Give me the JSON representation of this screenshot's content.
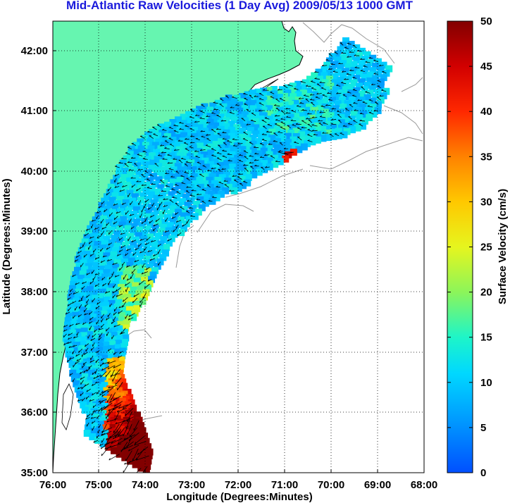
{
  "title": "Mid-Atlantic Raw Velocities (1 Day Avg) 2009/05/13 1000 GMT",
  "x_axis": {
    "label": "Longitude (Degrees:Minutes)",
    "ticks": [
      "76:00",
      "75:00",
      "74:00",
      "73:00",
      "72:00",
      "71:00",
      "70:00",
      "69:00",
      "68:00"
    ]
  },
  "y_axis": {
    "label": "Latitude (Degrees:Minutes)",
    "ticks": [
      "35:00",
      "36:00",
      "37:00",
      "38:00",
      "39:00",
      "40:00",
      "41:00",
      "42:00"
    ]
  },
  "colorbar": {
    "label": "Surface Velocity (cm/s)",
    "ticks": [
      "0",
      "5",
      "10",
      "15",
      "20",
      "25",
      "30",
      "35",
      "40",
      "45",
      "50"
    ],
    "min": 0,
    "max": 50,
    "colormap": "jet"
  },
  "colors": {
    "land": "#66f5b0",
    "ocean": "#ffffff",
    "title": "#1a1adc",
    "grid": "#000000",
    "bathymetry": "#999999"
  },
  "grid": "dotted"
}
